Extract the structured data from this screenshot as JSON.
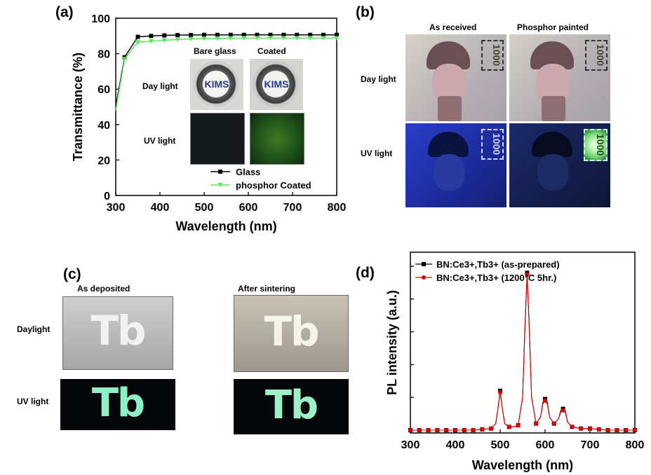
{
  "panels": {
    "a": {
      "label": "(a)",
      "chart_data": {
        "type": "line",
        "xlabel": "Wavelength (nm)",
        "ylabel": "Transmittance (%)",
        "xlim": [
          300,
          800
        ],
        "ylim": [
          0,
          100
        ],
        "xticks": [
          300,
          400,
          500,
          600,
          700,
          800
        ],
        "yticks": [
          0,
          20,
          40,
          60,
          80,
          100
        ],
        "legend_position": "bottom-right",
        "grid": false,
        "series": [
          {
            "name": "Glass",
            "color": "#000000",
            "marker": "square",
            "x": [
              300,
              320,
              350,
              380,
              410,
              440,
              470,
              500,
              530,
              560,
              590,
              620,
              650,
              680,
              710,
              740,
              770,
              800
            ],
            "y": [
              50,
              78,
              89.5,
              90,
              90.3,
              90.5,
              90.5,
              90.6,
              90.6,
              90.6,
              90.6,
              90.6,
              90.6,
              90.6,
              90.6,
              90.6,
              90.6,
              90.6
            ]
          },
          {
            "name": "phosphor Coated",
            "color": "#5ce65c",
            "marker": "triangle-down",
            "x": [
              300,
              320,
              350,
              380,
              410,
              440,
              470,
              500,
              530,
              560,
              590,
              620,
              650,
              680,
              710,
              740,
              770,
              800
            ],
            "y": [
              48,
              77,
              86.5,
              87,
              87.5,
              88,
              88.3,
              88.5,
              88.6,
              88.7,
              88.8,
              88.8,
              88.8,
              88.8,
              88.8,
              88.8,
              88.8,
              88.8
            ]
          }
        ]
      },
      "inset": {
        "col_labels": [
          "Bare glass",
          "Coated"
        ],
        "row_labels": [
          "Day light",
          "UV light"
        ],
        "logo_text": "KIMS"
      }
    },
    "b": {
      "label": "(b)",
      "col_labels": [
        "As received",
        "Phosphor painted"
      ],
      "row_labels": [
        "Day light",
        "UV light"
      ],
      "note_value": "1000"
    },
    "c": {
      "label": "(c)",
      "col_labels": [
        "As deposited",
        "After sintering"
      ],
      "row_labels": [
        "Daylight",
        "UV light"
      ],
      "sample_text": "Tb"
    },
    "d": {
      "label": "(d)",
      "chart_data": {
        "type": "line",
        "xlabel": "Wavelength (nm)",
        "ylabel": "PL intensity (a.u.)",
        "xlim": [
          300,
          800
        ],
        "ylim": [
          0,
          100
        ],
        "xticks": [
          300,
          400,
          500,
          600,
          700,
          800
        ],
        "yticks_labeled": false,
        "legend_position": "top-left",
        "grid": false,
        "series": [
          {
            "name": "BN:Ce3+,Tb3+ (as-prepared)",
            "color": "#000000",
            "marker": "square",
            "x": [
              300,
              320,
              340,
              360,
              380,
              400,
              420,
              440,
              460,
              480,
              490,
              495,
              500,
              505,
              510,
              520,
              530,
              540,
              550,
              555,
              560,
              565,
              570,
              580,
              590,
              595,
              600,
              605,
              610,
              620,
              630,
              635,
              640,
              645,
              650,
              660,
              680,
              700,
              720,
              740,
              760,
              780,
              800
            ],
            "y": [
              0,
              0,
              0,
              0,
              0,
              0,
              0,
              0,
              0.5,
              1,
              4,
              13,
              24,
              13,
              4,
              2,
              2,
              3,
              20,
              62,
              96,
              62,
              20,
              4,
              8,
              17,
              19,
              17,
              8,
              4,
              7,
              12,
              13,
              12,
              5,
              2,
              1,
              1,
              0.5,
              0,
              0,
              0,
              0
            ]
          },
          {
            "name": "BN:Ce3+,Tb3+ (1200°C 5hr.)",
            "color": "#e00000",
            "marker": "circle",
            "x": [
              300,
              320,
              340,
              360,
              380,
              400,
              420,
              440,
              460,
              480,
              490,
              495,
              500,
              505,
              510,
              520,
              530,
              540,
              550,
              555,
              560,
              565,
              570,
              580,
              590,
              595,
              600,
              605,
              610,
              620,
              630,
              635,
              640,
              645,
              650,
              660,
              680,
              700,
              720,
              740,
              760,
              780,
              800
            ],
            "y": [
              0,
              0,
              0,
              0,
              0,
              0,
              0,
              0,
              0.5,
              1,
              4,
              13,
              23,
              13,
              4,
              2,
              2,
              3,
              20,
              60,
              95,
              60,
              20,
              4,
              8,
              16,
              18,
              16,
              8,
              4,
              7,
              11,
              12,
              11,
              5,
              2,
              1,
              1,
              0.5,
              0,
              0,
              0,
              0
            ]
          }
        ]
      }
    }
  }
}
